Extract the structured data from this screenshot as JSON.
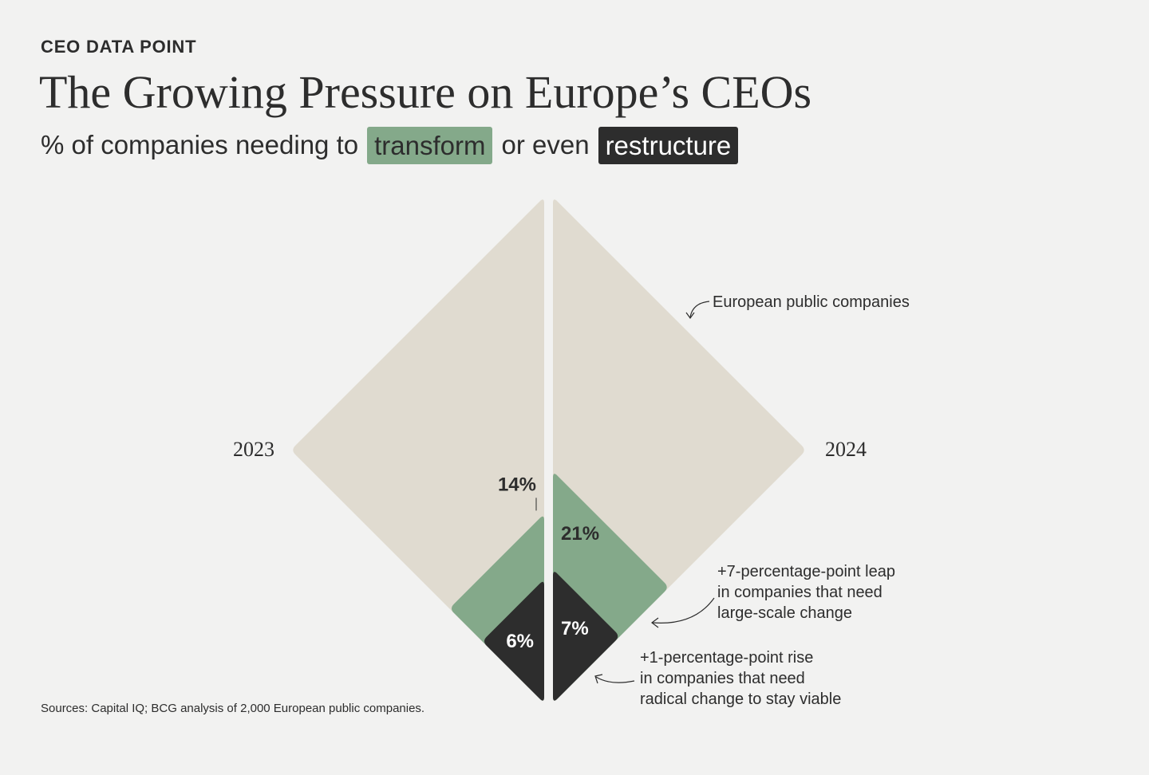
{
  "header": {
    "eyebrow": "CEO DATA POINT",
    "title": "The Growing Pressure on Europe’s CEOs",
    "subtitle_prefix": "% of companies needing to",
    "subtitle_transform": "transform",
    "subtitle_middle": "or even",
    "subtitle_restructure": "restructure"
  },
  "colors": {
    "base": "#e0dbd0",
    "transform": "#84a98a",
    "restructure": "#2d2d2d",
    "background": "#f2f2f1"
  },
  "chart_data": {
    "type": "diamond-area",
    "base_label": "European public companies",
    "years": [
      {
        "year": "2023",
        "transform_pct": 14,
        "transform_label": "14%",
        "restructure_pct": 6,
        "restructure_label": "6%"
      },
      {
        "year": "2024",
        "transform_pct": 21,
        "transform_label": "21%",
        "restructure_pct": 7,
        "restructure_label": "7%"
      }
    ],
    "annotations": {
      "transform_change": [
        "+7-percentage-point leap",
        "in companies that need",
        "large-scale change"
      ],
      "restructure_change": [
        "+1-percentage-point rise",
        "in companies that need",
        "radical change to stay viable"
      ]
    }
  },
  "footer": {
    "sources": "Sources: Capital IQ; BCG analysis of 2,000 European public companies."
  }
}
